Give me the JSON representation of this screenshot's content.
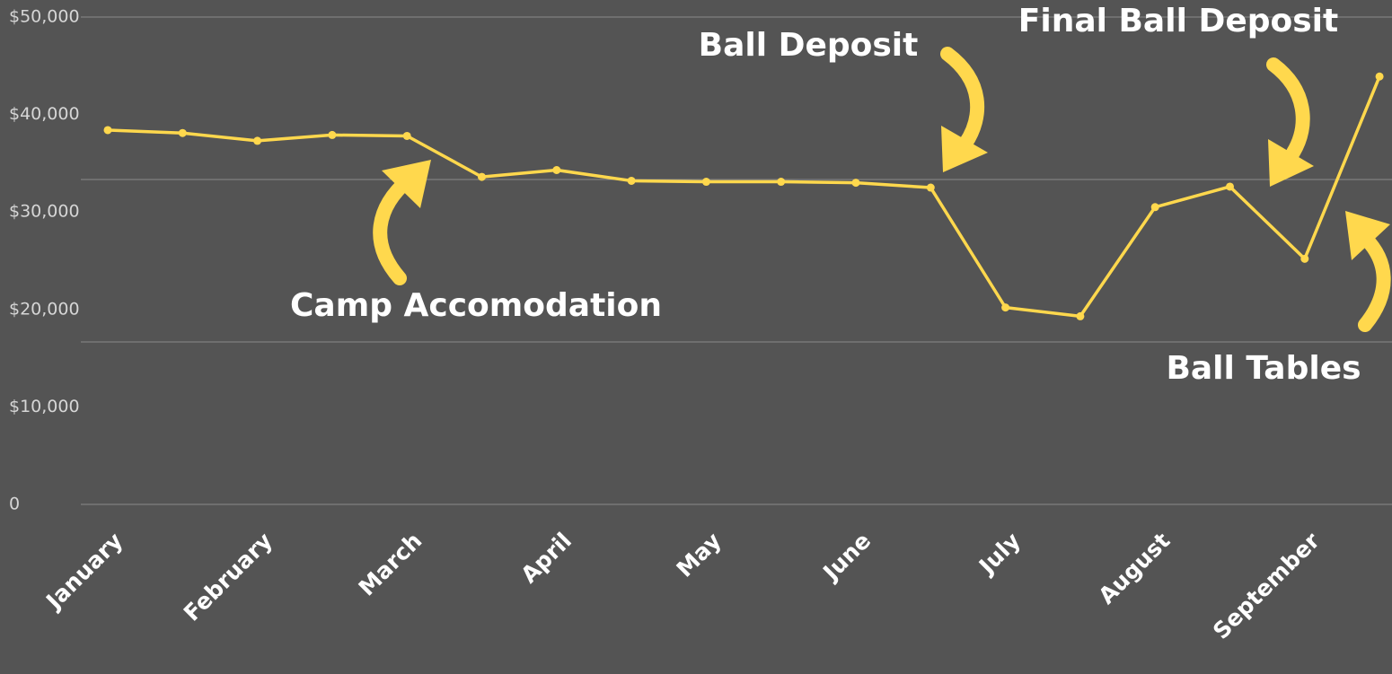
{
  "chart_data": {
    "type": "line",
    "categories": [
      "January",
      null,
      "February",
      null,
      "March",
      null,
      "April",
      null,
      "May",
      null,
      "June",
      null,
      "July",
      null,
      "August",
      null,
      "September",
      null
    ],
    "series": [
      {
        "color": "#ffd84d",
        "values": [
          38400,
          38100,
          37300,
          37900,
          37800,
          33600,
          34300,
          33200,
          33100,
          33100,
          33000,
          32500,
          20200,
          19300,
          30500,
          32600,
          25200,
          43900
        ]
      }
    ],
    "ylim": [
      0,
      50000
    ],
    "yticks": [
      {
        "value": 0,
        "label": "0"
      },
      {
        "value": 10000,
        "label": "$10,000"
      },
      {
        "value": 20000,
        "label": "$20,000"
      },
      {
        "value": 30000,
        "label": "$30,000"
      },
      {
        "value": 40000,
        "label": "$40,000"
      },
      {
        "value": 50000,
        "label": "$50,000"
      }
    ],
    "grid_lines": [
      0,
      16667,
      33333,
      50000
    ],
    "annotations": [
      {
        "text": "Camp Accomodation",
        "index": 4
      },
      {
        "text": "Ball Deposit",
        "index": 11
      },
      {
        "text": "Final Ball Deposit",
        "index": 16
      },
      {
        "text": "Ball Tables",
        "index": 17
      }
    ]
  }
}
